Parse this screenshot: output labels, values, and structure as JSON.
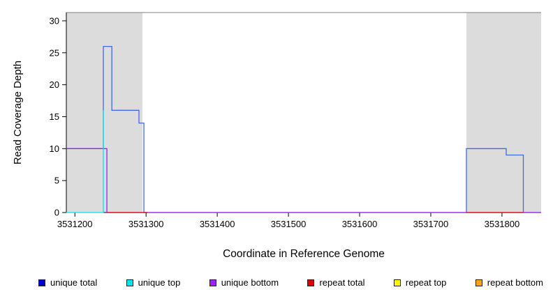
{
  "chart_data": {
    "type": "line",
    "title": "",
    "xlabel": "Coordinate in Reference Genome",
    "ylabel": "Read Coverage Depth",
    "xlim": [
      3531188,
      3531855
    ],
    "ylim": [
      0,
      31.3
    ],
    "x_ticks": [
      3531200,
      3531300,
      3531400,
      3531500,
      3531600,
      3531700,
      3531800
    ],
    "y_ticks": [
      0,
      5,
      10,
      15,
      20,
      25,
      30
    ],
    "grid": false,
    "legend_position": "bottom",
    "shaded_regions": [
      {
        "x0": 3531188,
        "x1": 3531295,
        "color": "#DCDCDC"
      },
      {
        "x0": 3531750,
        "x1": 3531855,
        "color": "#DCDCDC"
      }
    ],
    "top_line": {
      "y": 31.3,
      "color": "#808080"
    },
    "series": [
      {
        "name": "unique total",
        "color": "#4169E1",
        "points": [
          [
            3531188,
            10
          ],
          [
            3531240,
            10
          ],
          [
            3531240,
            26
          ],
          [
            3531252,
            26
          ],
          [
            3531252,
            16
          ],
          [
            3531290,
            16
          ],
          [
            3531290,
            14
          ],
          [
            3531297,
            14
          ],
          [
            3531297,
            0
          ],
          [
            3531750,
            0
          ],
          [
            3531750,
            10
          ],
          [
            3531806,
            10
          ],
          [
            3531806,
            9
          ],
          [
            3531830,
            9
          ],
          [
            3531830,
            0
          ],
          [
            3531855,
            0
          ]
        ]
      },
      {
        "name": "unique bottom",
        "color": "#A020F0",
        "points": [
          [
            3531188,
            10
          ],
          [
            3531245,
            10
          ],
          [
            3531245,
            0
          ],
          [
            3531855,
            0
          ]
        ]
      },
      {
        "name": "unique top",
        "color": "#00E5EE",
        "points": [
          [
            3531188,
            0
          ],
          [
            3531240,
            0
          ],
          [
            3531240,
            16
          ]
        ]
      },
      {
        "name": "repeat total",
        "color": "#E00000",
        "segments": [
          [
            [
              3531245,
              0
            ],
            [
              3531302,
              0
            ]
          ],
          [
            [
              3531750,
              0
            ],
            [
              3531830,
              0
            ]
          ]
        ]
      }
    ],
    "legend": [
      {
        "label": "unique total",
        "color": "#0000CD"
      },
      {
        "label": "unique top",
        "color": "#00E5EE"
      },
      {
        "label": "unique bottom",
        "color": "#A020F0"
      },
      {
        "label": "repeat total",
        "color": "#E00000"
      },
      {
        "label": "repeat top",
        "color": "#FFFF00"
      },
      {
        "label": "repeat bottom",
        "color": "#FFA500"
      }
    ]
  }
}
